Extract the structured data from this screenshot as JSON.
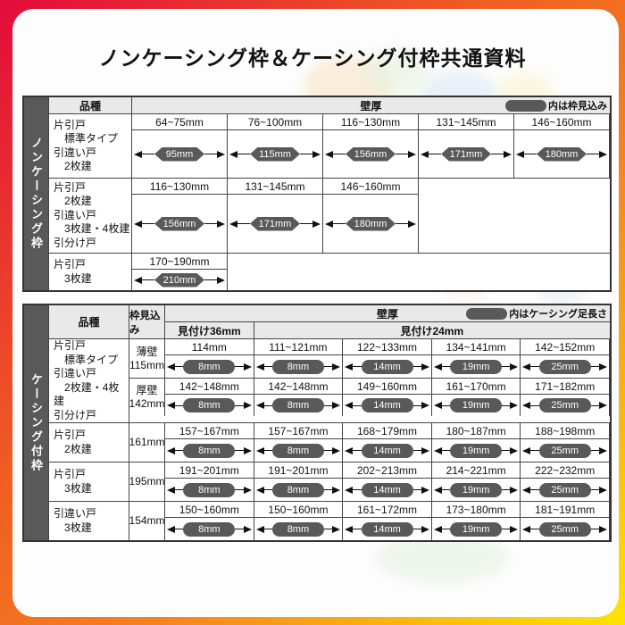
{
  "page": {
    "title": "ノンケーシング枠＆ケーシング付枠共通資料"
  },
  "colors": {
    "frame_gradient_start": "#e30b3c",
    "frame_gradient_mid": "#f5821e",
    "frame_gradient_end": "#ffe400",
    "sidebar_bg": "#595959",
    "pill_bg": "#595959",
    "header_bg": "#e9e9e9"
  },
  "table1": {
    "side_label": "ノンケーシング枠",
    "header": {
      "kind": "品種",
      "wall": "壁厚",
      "legend": "内は枠見込み"
    },
    "rows": [
      {
        "kind": "片引戸\n　標準タイプ\n引違い戸\n　2枚建",
        "cells": [
          {
            "range": "64~75mm",
            "value": "95mm"
          },
          {
            "range": "76~100mm",
            "value": "115mm"
          },
          {
            "range": "116~130mm",
            "value": "156mm"
          },
          {
            "range": "131~145mm",
            "value": "171mm"
          },
          {
            "range": "146~160mm",
            "value": "180mm"
          }
        ]
      },
      {
        "kind": "片引戸\n　2枚建\n引違い戸\n　3枚建・4枚建\n引分け戸",
        "cells": [
          {
            "range": "116~130mm",
            "value": "156mm"
          },
          {
            "range": "131~145mm",
            "value": "171mm"
          },
          {
            "range": "146~160mm",
            "value": "180mm"
          }
        ]
      },
      {
        "kind": "片引戸\n　3枚建",
        "cells": [
          {
            "range": "170~190mm",
            "value": "210mm"
          }
        ]
      }
    ]
  },
  "table2": {
    "side_label": "ケーシング付枠",
    "header": {
      "kind": "品種",
      "depth": "枠見込み",
      "wall": "壁厚",
      "legend": "内はケーシング足長さ",
      "sub36": "見付け36mm",
      "sub24": "見付け24mm"
    },
    "rows": [
      {
        "kind": "片引戸\n　標準タイプ\n引違い戸\n　2枚建・4枚建\n引分け戸",
        "subrows": [
          {
            "depth": "薄壁\n115mm",
            "cells": [
              {
                "range": "114mm",
                "value": "8mm"
              },
              {
                "range": "111~121mm",
                "value": "8mm"
              },
              {
                "range": "122~133mm",
                "value": "14mm"
              },
              {
                "range": "134~141mm",
                "value": "19mm"
              },
              {
                "range": "142~152mm",
                "value": "25mm"
              }
            ]
          },
          {
            "depth": "厚壁\n142mm",
            "cells": [
              {
                "range": "142~148mm",
                "value": "8mm"
              },
              {
                "range": "142~148mm",
                "value": "8mm"
              },
              {
                "range": "149~160mm",
                "value": "14mm"
              },
              {
                "range": "161~170mm",
                "value": "19mm"
              },
              {
                "range": "171~182mm",
                "value": "25mm"
              }
            ]
          }
        ]
      },
      {
        "kind": "片引戸\n　2枚建",
        "subrows": [
          {
            "depth": "161mm",
            "cells": [
              {
                "range": "157~167mm",
                "value": "8mm"
              },
              {
                "range": "157~167mm",
                "value": "8mm"
              },
              {
                "range": "168~179mm",
                "value": "14mm"
              },
              {
                "range": "180~187mm",
                "value": "19mm"
              },
              {
                "range": "188~198mm",
                "value": "25mm"
              }
            ]
          }
        ]
      },
      {
        "kind": "片引戸\n　3枚建",
        "subrows": [
          {
            "depth": "195mm",
            "cells": [
              {
                "range": "191~201mm",
                "value": "8mm"
              },
              {
                "range": "191~201mm",
                "value": "8mm"
              },
              {
                "range": "202~213mm",
                "value": "14mm"
              },
              {
                "range": "214~221mm",
                "value": "19mm"
              },
              {
                "range": "222~232mm",
                "value": "25mm"
              }
            ]
          }
        ]
      },
      {
        "kind": "引違い戸\n　3枚建",
        "subrows": [
          {
            "depth": "154mm",
            "cells": [
              {
                "range": "150~160mm",
                "value": "8mm"
              },
              {
                "range": "150~160mm",
                "value": "8mm"
              },
              {
                "range": "161~172mm",
                "value": "14mm"
              },
              {
                "range": "173~180mm",
                "value": "19mm"
              },
              {
                "range": "181~191mm",
                "value": "25mm"
              }
            ]
          }
        ]
      }
    ]
  }
}
